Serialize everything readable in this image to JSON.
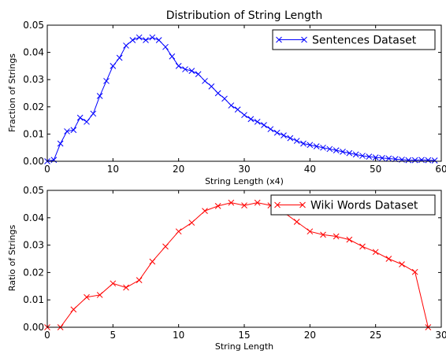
{
  "chart_data": [
    {
      "type": "line",
      "title": "Distribution of String Length",
      "xlabel": "String Length (x4)",
      "ylabel": "Fraction of Strings",
      "xlim": [
        0,
        60
      ],
      "ylim": [
        0,
        0.05
      ],
      "xticks": [
        0,
        10,
        20,
        30,
        40,
        50,
        60
      ],
      "yticks": [
        0.0,
        0.01,
        0.02,
        0.03,
        0.04,
        0.05
      ],
      "ytick_labels": [
        "0.00",
        "0.01",
        "0.02",
        "0.03",
        "0.04",
        "0.05"
      ],
      "grid": false,
      "legend_position": "top-right",
      "series": [
        {
          "name": "Sentences Dataset",
          "color": "#0000ff",
          "marker": "x",
          "x": [
            0,
            1,
            2,
            3,
            4,
            5,
            6,
            7,
            8,
            9,
            10,
            11,
            12,
            13,
            14,
            15,
            16,
            17,
            18,
            19,
            20,
            21,
            22,
            23,
            24,
            25,
            26,
            27,
            28,
            29,
            30,
            31,
            32,
            33,
            34,
            35,
            36,
            37,
            38,
            39,
            40,
            41,
            42,
            43,
            44,
            45,
            46,
            47,
            48,
            49,
            50,
            51,
            52,
            53,
            54,
            55,
            56,
            57,
            58,
            59
          ],
          "values": [
            0.0,
            0.0005,
            0.0065,
            0.011,
            0.0115,
            0.016,
            0.0145,
            0.0175,
            0.024,
            0.0295,
            0.035,
            0.038,
            0.0425,
            0.0445,
            0.0455,
            0.0445,
            0.0455,
            0.0445,
            0.042,
            0.0385,
            0.035,
            0.0338,
            0.0332,
            0.032,
            0.0295,
            0.0275,
            0.025,
            0.023,
            0.0205,
            0.019,
            0.017,
            0.0155,
            0.0145,
            0.0133,
            0.0118,
            0.0105,
            0.0095,
            0.0085,
            0.0075,
            0.0065,
            0.006,
            0.0055,
            0.005,
            0.0045,
            0.004,
            0.0035,
            0.003,
            0.0025,
            0.002,
            0.0017,
            0.0014,
            0.0012,
            0.001,
            0.0008,
            0.0006,
            0.0004,
            0.0004,
            0.0005,
            0.0004,
            0.0003
          ]
        }
      ]
    },
    {
      "type": "line",
      "title": "",
      "xlabel": "String Length",
      "ylabel": "Ratio of Strings",
      "xlim": [
        0,
        30
      ],
      "ylim": [
        0,
        0.05
      ],
      "xticks": [
        0,
        5,
        10,
        15,
        20,
        25,
        30
      ],
      "yticks": [
        0.0,
        0.01,
        0.02,
        0.03,
        0.04,
        0.05
      ],
      "ytick_labels": [
        "0.00",
        "0.01",
        "0.02",
        "0.03",
        "0.04",
        "0.05"
      ],
      "grid": false,
      "legend_position": "top-right",
      "series": [
        {
          "name": "Wiki Words Dataset",
          "color": "#ff0000",
          "marker": "x",
          "x": [
            0,
            1,
            2,
            3,
            4,
            5,
            6,
            7,
            8,
            9,
            10,
            11,
            12,
            13,
            14,
            15,
            16,
            17,
            18,
            19,
            20,
            21,
            22,
            23,
            24,
            25,
            26,
            27,
            28,
            29
          ],
          "values": [
            0.0,
            0.0,
            0.0065,
            0.011,
            0.0118,
            0.016,
            0.0145,
            0.0172,
            0.024,
            0.0295,
            0.035,
            0.0382,
            0.0425,
            0.0443,
            0.0455,
            0.0445,
            0.0455,
            0.0445,
            0.042,
            0.0385,
            0.035,
            0.0338,
            0.0332,
            0.032,
            0.0295,
            0.0275,
            0.025,
            0.023,
            0.0202,
            0.0
          ]
        }
      ]
    }
  ]
}
